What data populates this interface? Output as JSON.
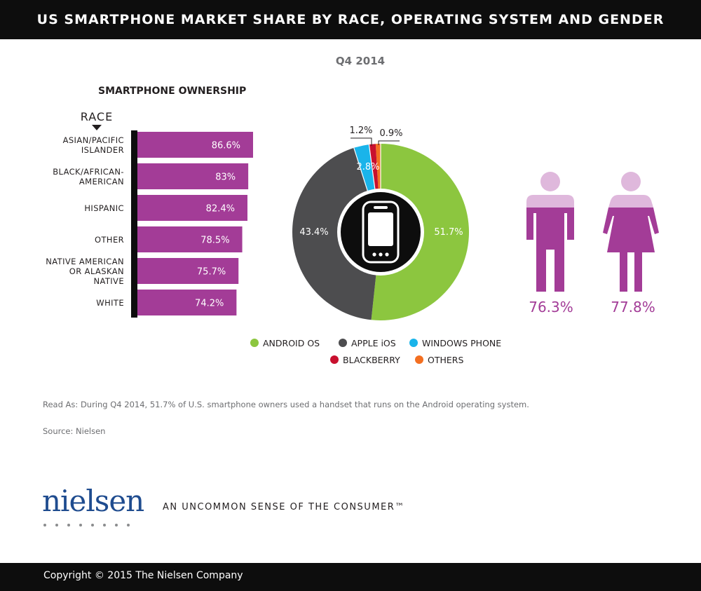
{
  "header": {
    "title": "US SMARTPHONE MARKET SHARE BY RACE, OPERATING SYSTEM AND GENDER"
  },
  "period": "Q4 2014",
  "section_title": "SMARTPHONE OWNERSHIP",
  "race_axis_label": "RACE",
  "colors": {
    "bar": "#a33c97",
    "android": "#8cc63f",
    "ios": "#4d4d4f",
    "windows": "#1ab4ea",
    "blackberry": "#c8102e",
    "others": "#f36f21",
    "gender": "#a33c97",
    "gender_head": "#dfb8dc"
  },
  "chart_data": [
    {
      "type": "bar",
      "orientation": "horizontal",
      "title": "SMARTPHONE OWNERSHIP",
      "ylabel": "RACE",
      "categories": [
        [
          "ASIAN/PACIFIC",
          "ISLANDER"
        ],
        [
          "BLACK/AFRICAN-",
          "AMERICAN"
        ],
        [
          "HISPANIC"
        ],
        [
          "OTHER"
        ],
        [
          "NATIVE AMERICAN",
          "OR ALASKAN",
          "NATIVE"
        ],
        [
          "WHITE"
        ]
      ],
      "values": [
        86.6,
        83,
        82.4,
        78.5,
        75.7,
        74.2
      ],
      "value_labels": [
        "86.6%",
        "83%",
        "82.4%",
        "78.5%",
        "75.7%",
        "74.2%"
      ]
    },
    {
      "type": "pie",
      "style": "donut",
      "slices": [
        {
          "name": "ANDROID OS",
          "value": 51.7,
          "label": "51.7%",
          "color_key": "android"
        },
        {
          "name": "APPLE iOS",
          "value": 43.4,
          "label": "43.4%",
          "color_key": "ios"
        },
        {
          "name": "WINDOWS PHONE",
          "value": 2.8,
          "label": "2.8%",
          "color_key": "windows"
        },
        {
          "name": "BLACKBERRY",
          "value": 1.2,
          "label": "1.2%",
          "color_key": "blackberry"
        },
        {
          "name": "OTHERS",
          "value": 0.9,
          "label": "0.9%",
          "color_key": "others"
        }
      ],
      "center_icon": "smartphone-icon"
    },
    {
      "type": "bar",
      "style": "pictogram",
      "categories": [
        "male",
        "female"
      ],
      "icons": [
        "male-figure-icon",
        "female-figure-icon"
      ],
      "values": [
        76.3,
        77.8
      ],
      "value_labels": [
        "76.3%",
        "77.8%"
      ]
    }
  ],
  "legend": [
    {
      "label": "ANDROID OS",
      "color_key": "android"
    },
    {
      "label": "APPLE iOS",
      "color_key": "ios"
    },
    {
      "label": "WINDOWS PHONE",
      "color_key": "windows"
    },
    {
      "label": "BLACKBERRY",
      "color_key": "blackberry"
    },
    {
      "label": "OTHERS",
      "color_key": "others"
    }
  ],
  "note": "Read As: During Q4 2014, 51.7% of U.S. smartphone owners used a handset that runs on the Android operating system.",
  "source": "Source: Nielsen",
  "brand": {
    "logo_text": "nielsen",
    "tagline": "AN UNCOMMON SENSE OF THE CONSUMER™"
  },
  "footer": {
    "copyright": "Copyright © 2015 The Nielsen Company"
  }
}
